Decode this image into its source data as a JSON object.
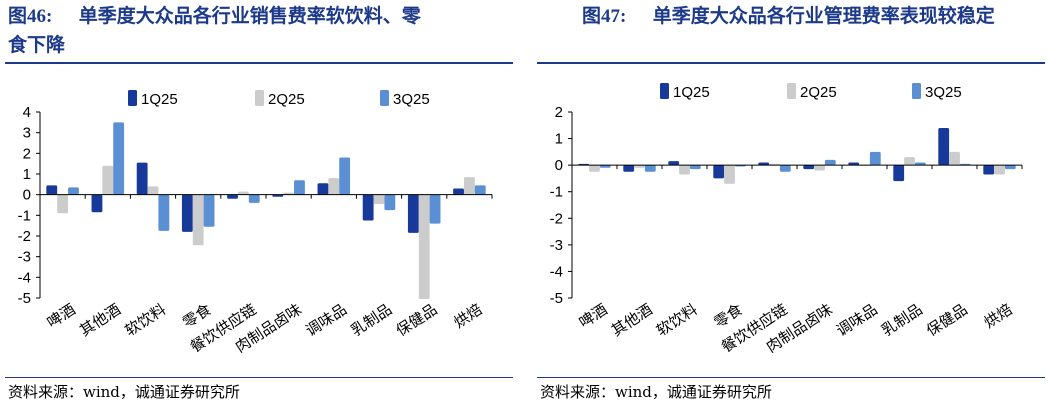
{
  "left": {
    "title_prefix": "图46:",
    "title_line1": "单季度大众品各行业销售费率软饮料、零",
    "title_line2": "食下降",
    "source": "资料来源：wind，诚通证券研究所"
  },
  "right": {
    "title_prefix": "图47:",
    "title_line1": "单季度大众品各行业管理费率表现较稳定",
    "source": "资料来源：wind，诚通证券研究所"
  },
  "colors": {
    "1Q25": "#17399a",
    "2Q25": "#cccccc",
    "3Q25": "#5b8fd4",
    "title": "#1d3a8a"
  },
  "chart_data": [
    {
      "type": "bar",
      "categories": [
        "啤酒",
        "其他酒",
        "软饮料",
        "零食",
        "餐饮供应链",
        "肉制品卤味",
        "调味品",
        "乳制品",
        "保健品",
        "烘焙"
      ],
      "series": [
        {
          "name": "1Q25",
          "values": [
            0.45,
            -0.85,
            1.55,
            -1.8,
            -0.2,
            -0.1,
            0.55,
            -1.25,
            -1.85,
            0.3
          ]
        },
        {
          "name": "2Q25",
          "values": [
            -0.9,
            1.4,
            0.4,
            -2.45,
            0.15,
            0.1,
            0.8,
            -0.45,
            -5.05,
            0.85
          ]
        },
        {
          "name": "3Q25",
          "values": [
            0.35,
            3.5,
            -1.75,
            -1.55,
            -0.4,
            0.7,
            1.8,
            -0.75,
            -1.4,
            0.45
          ]
        }
      ],
      "ylim": [
        -5,
        4
      ],
      "yticks": [
        -5,
        -4,
        -3,
        -2,
        -1,
        0,
        1,
        2,
        3,
        4
      ],
      "legend_position": "top-center",
      "grid": false
    },
    {
      "type": "bar",
      "categories": [
        "啤酒",
        "其他酒",
        "软饮料",
        "零食",
        "餐饮供应链",
        "肉制品卤味",
        "调味品",
        "乳制品",
        "保健品",
        "烘焙"
      ],
      "series": [
        {
          "name": "1Q25",
          "values": [
            0.05,
            -0.25,
            0.15,
            -0.5,
            0.1,
            -0.15,
            0.1,
            -0.6,
            1.4,
            -0.35
          ]
        },
        {
          "name": "2Q25",
          "values": [
            -0.25,
            -0.1,
            -0.35,
            -0.7,
            0.05,
            -0.2,
            0.0,
            0.3,
            0.5,
            -0.35
          ]
        },
        {
          "name": "3Q25",
          "values": [
            -0.1,
            -0.25,
            -0.15,
            -0.05,
            -0.25,
            0.2,
            0.5,
            0.1,
            0.05,
            -0.15
          ]
        }
      ],
      "ylim": [
        -5,
        2
      ],
      "yticks": [
        -5,
        -4,
        -3,
        -2,
        -1,
        0,
        1,
        2
      ],
      "legend_position": "top-center",
      "grid": false
    }
  ]
}
